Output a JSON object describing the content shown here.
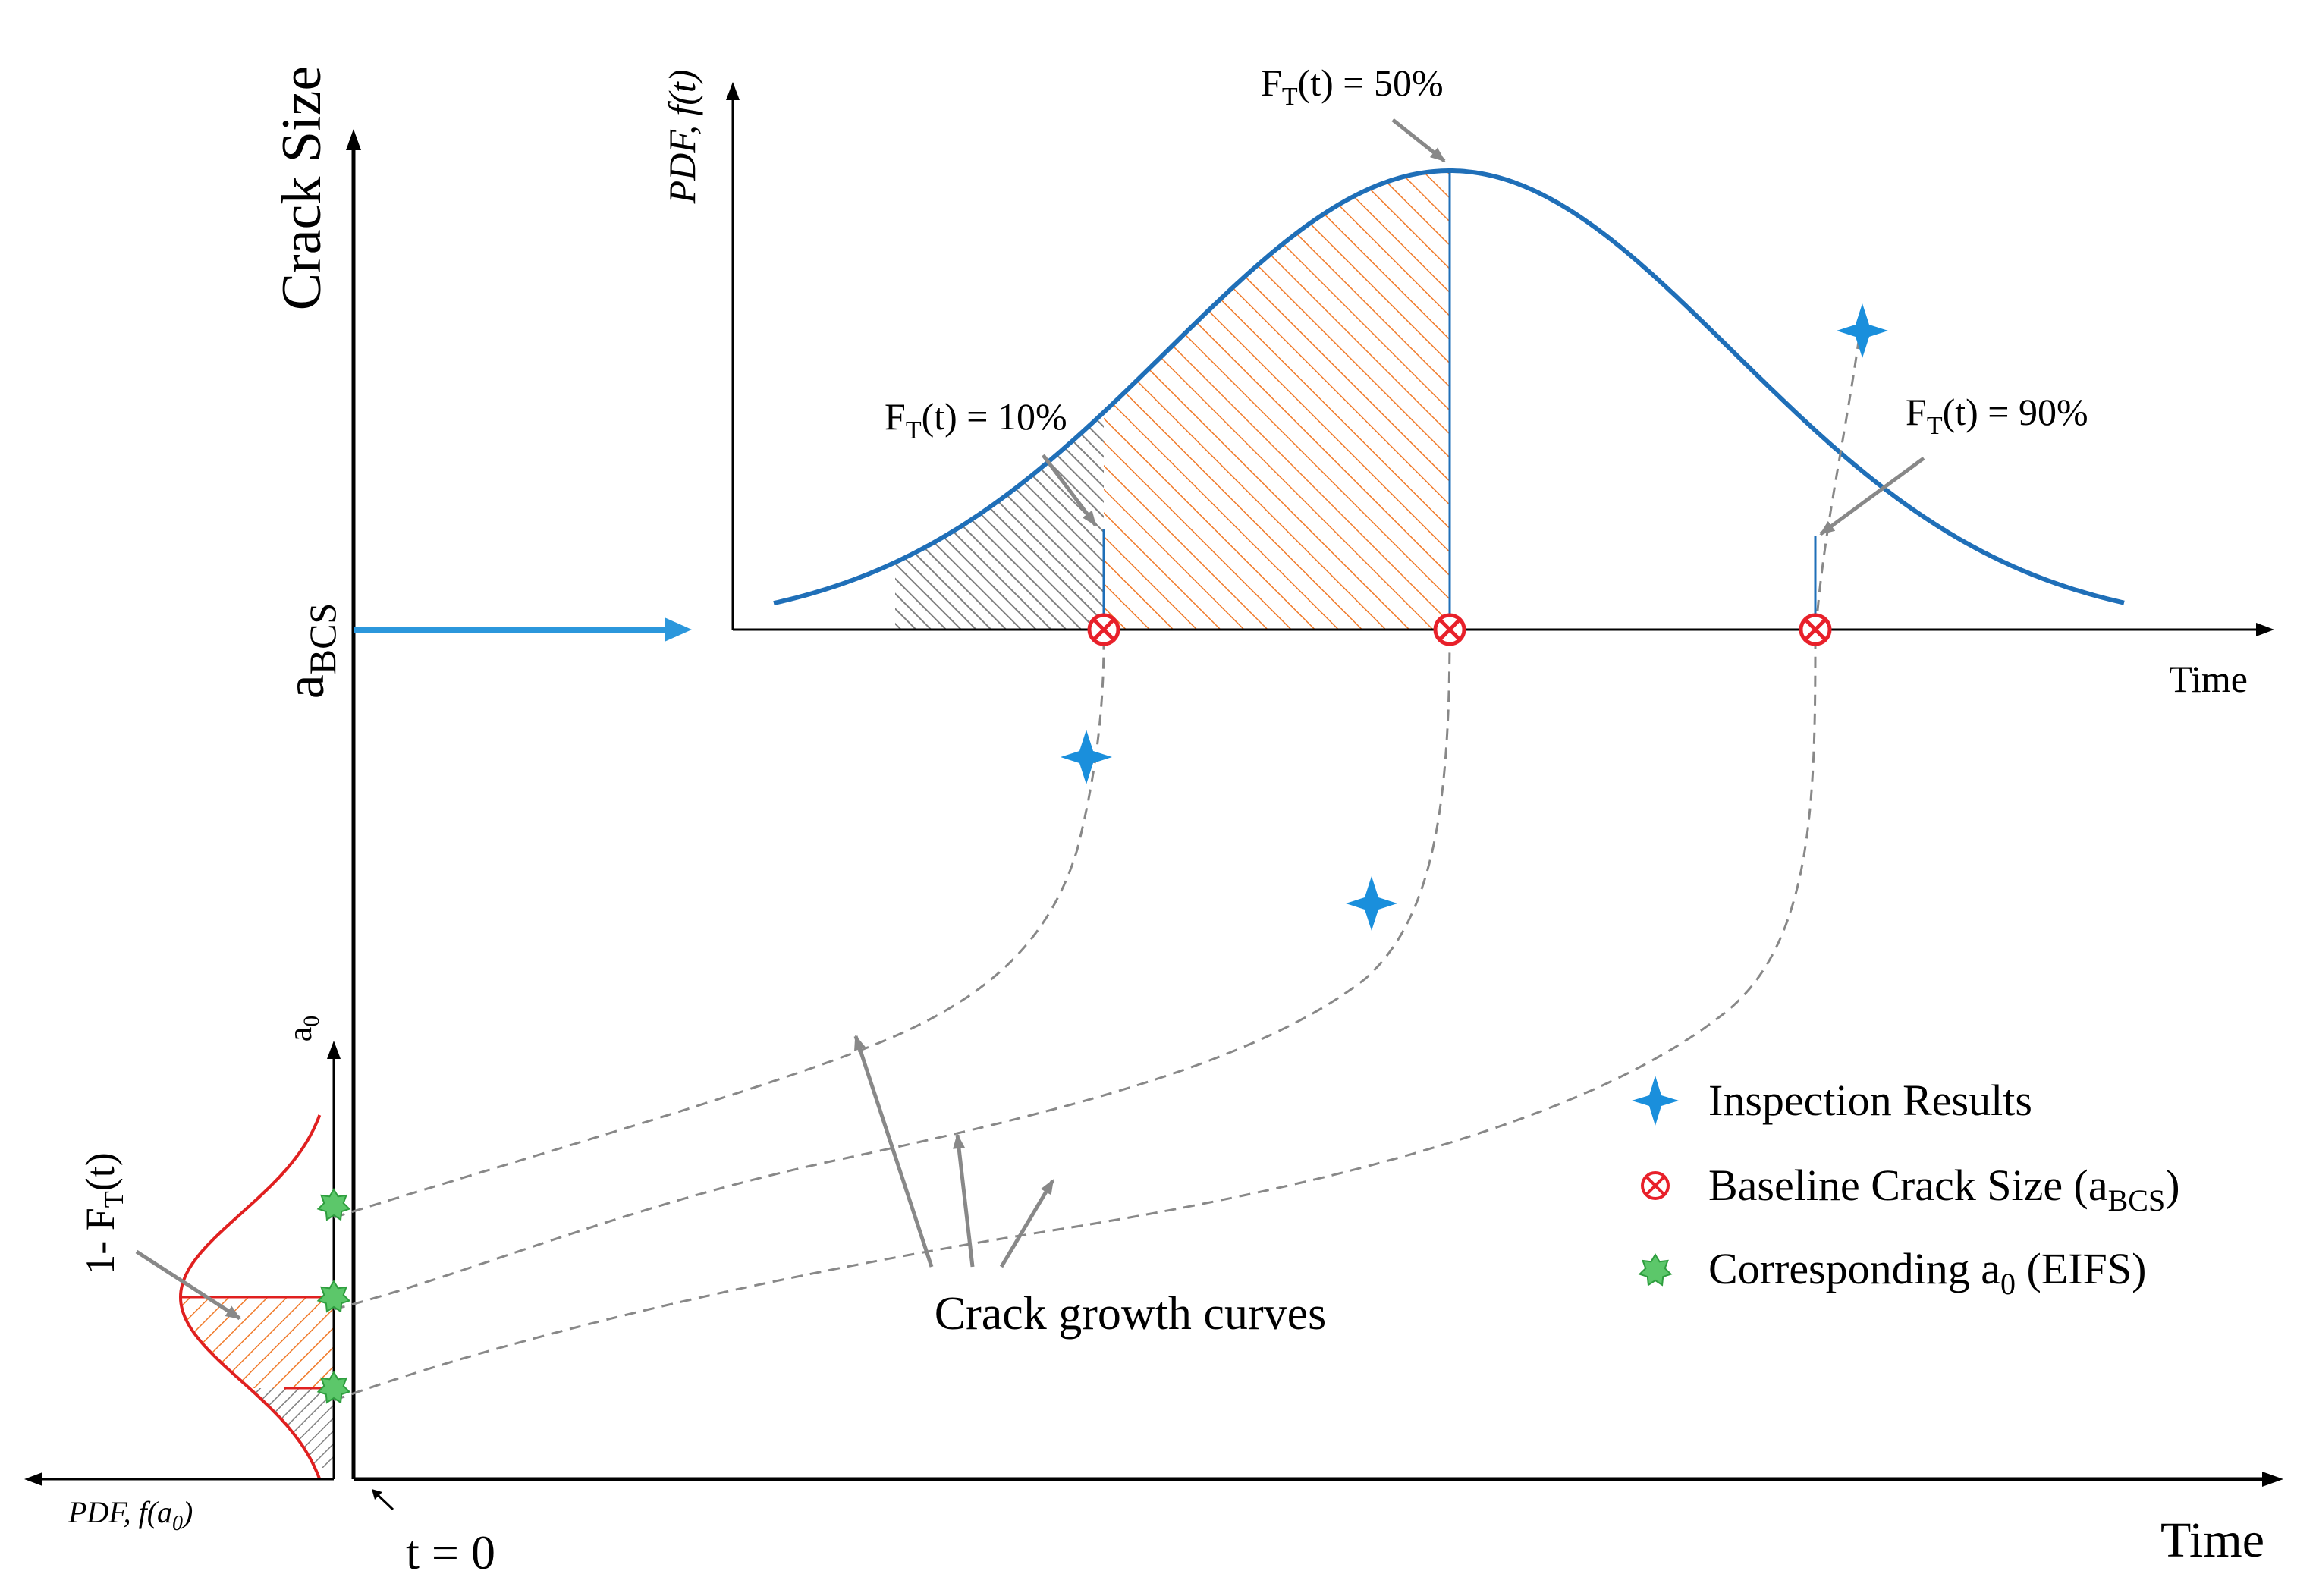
{
  "main_axes": {
    "y_label": "Crack Size",
    "y_tick_label": "a",
    "y_tick_sub": "BCS",
    "x_label": "Time",
    "origin_label": "t = 0"
  },
  "pdf_time_plot": {
    "y_label": "PDF, f(t)",
    "x_label": "Time",
    "ann_10": {
      "prefix": "F",
      "sub": "T",
      "text": "(t) = 10%"
    },
    "ann_50": {
      "prefix": "F",
      "sub": "T",
      "text": "(t) = 50%"
    },
    "ann_90": {
      "prefix": "F",
      "sub": "T",
      "text": "(t) = 90%"
    }
  },
  "pdf_a0_plot": {
    "y_label": "a",
    "y_sub": "0",
    "x_label_pre": "PDF, f(a",
    "x_label_sub": "0",
    "x_label_post": ")",
    "area_label_pre": "1- F",
    "area_label_sub": "T",
    "area_label_post": "(t)"
  },
  "curves_label": "Crack growth curves",
  "legend": {
    "inspection": "Inspection Results",
    "baseline_pre": "Baseline Crack Size (a",
    "baseline_sub": "BCS",
    "baseline_post": ")",
    "eifs_pre": "Corresponding a",
    "eifs_sub": "0",
    "eifs_post": " (EIFS)"
  },
  "colors": {
    "pdf_curve": "#1f6fb8",
    "arrow_blue": "#2b97dc",
    "hatch_orange": "#f07a2a",
    "hatch_gray": "#808080",
    "marker_red": "#e8202a",
    "star_blue": "#1a8fdc",
    "star_green": "#5cc76a",
    "a0_curve": "#e02020"
  }
}
